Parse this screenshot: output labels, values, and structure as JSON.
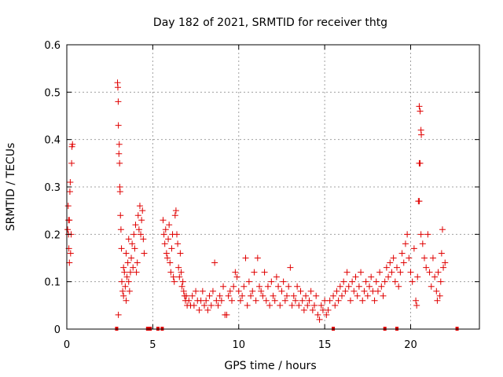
{
  "chart_data": {
    "type": "scatter",
    "title": "Day 182 of 2021, SRMTID for receiver thtg",
    "xlabel": "GPS time / hours",
    "ylabel": "SRMTID / TECUs",
    "xlim": [
      0,
      24
    ],
    "ylim": [
      0,
      0.6
    ],
    "xticks": [
      0,
      5,
      10,
      15,
      20
    ],
    "xtick_labels": [
      "0",
      "5",
      "10",
      "15",
      "20"
    ],
    "yticks": [
      0,
      0.1,
      0.2,
      0.3,
      0.4,
      0.5,
      0.6
    ],
    "ytick_labels": [
      "0",
      "0.1",
      "0.2",
      "0.3",
      "0.4",
      "0.5",
      "0.6"
    ],
    "grid": true,
    "marker": "plus",
    "color": "#e00000",
    "series": [
      {
        "name": "SRMTID",
        "points": [
          [
            0.05,
            0.21
          ],
          [
            0.08,
            0.26
          ],
          [
            0.1,
            0.2
          ],
          [
            0.12,
            0.17
          ],
          [
            0.15,
            0.23
          ],
          [
            0.18,
            0.29
          ],
          [
            0.2,
            0.31
          ],
          [
            0.22,
            0.16
          ],
          [
            0.25,
            0.2
          ],
          [
            0.28,
            0.35
          ],
          [
            0.3,
            0.385
          ],
          [
            0.33,
            0.39
          ],
          [
            0.15,
            0.14
          ],
          [
            0.1,
            0.23
          ],
          [
            2.95,
            0.52
          ],
          [
            2.97,
            0.51
          ],
          [
            2.99,
            0.48
          ],
          [
            3.0,
            0.43
          ],
          [
            3.03,
            0.37
          ],
          [
            3.05,
            0.39
          ],
          [
            3.07,
            0.35
          ],
          [
            3.08,
            0.3
          ],
          [
            3.1,
            0.29
          ],
          [
            3.12,
            0.24
          ],
          [
            3.15,
            0.21
          ],
          [
            3.0,
            0.03
          ],
          [
            3.18,
            0.17
          ],
          [
            3.2,
            0.1
          ],
          [
            3.25,
            0.08
          ],
          [
            3.3,
            0.07
          ],
          [
            3.35,
            0.12
          ],
          [
            3.4,
            0.09
          ],
          [
            3.45,
            0.06
          ],
          [
            3.5,
            0.11
          ],
          [
            3.55,
            0.14
          ],
          [
            3.6,
            0.1
          ],
          [
            3.65,
            0.08
          ],
          [
            3.7,
            0.12
          ],
          [
            3.75,
            0.15
          ],
          [
            3.8,
            0.18
          ],
          [
            3.85,
            0.13
          ],
          [
            3.9,
            0.2
          ],
          [
            3.95,
            0.17
          ],
          [
            4.0,
            0.22
          ],
          [
            4.05,
            0.12
          ],
          [
            4.1,
            0.14
          ],
          [
            4.15,
            0.24
          ],
          [
            4.2,
            0.21
          ],
          [
            4.25,
            0.26
          ],
          [
            4.3,
            0.2
          ],
          [
            4.35,
            0.23
          ],
          [
            4.4,
            0.25
          ],
          [
            4.45,
            0.19
          ],
          [
            4.5,
            0.16
          ],
          [
            3.3,
            0.13
          ],
          [
            3.45,
            0.16
          ],
          [
            3.6,
            0.19
          ],
          [
            5.6,
            0.23
          ],
          [
            5.65,
            0.2
          ],
          [
            5.7,
            0.18
          ],
          [
            5.75,
            0.21
          ],
          [
            5.8,
            0.16
          ],
          [
            5.85,
            0.15
          ],
          [
            5.9,
            0.19
          ],
          [
            5.95,
            0.22
          ],
          [
            6.0,
            0.14
          ],
          [
            6.05,
            0.12
          ],
          [
            6.1,
            0.17
          ],
          [
            6.15,
            0.2
          ],
          [
            6.2,
            0.11
          ],
          [
            6.25,
            0.1
          ],
          [
            6.3,
            0.24
          ],
          [
            6.35,
            0.25
          ],
          [
            6.4,
            0.2
          ],
          [
            6.45,
            0.18
          ],
          [
            6.5,
            0.13
          ],
          [
            6.55,
            0.11
          ],
          [
            6.6,
            0.16
          ],
          [
            6.65,
            0.12
          ],
          [
            6.7,
            0.09
          ],
          [
            6.75,
            0.1
          ],
          [
            6.8,
            0.08
          ],
          [
            6.85,
            0.07
          ],
          [
            6.9,
            0.06
          ],
          [
            6.95,
            0.07
          ],
          [
            7.0,
            0.05
          ],
          [
            7.1,
            0.06
          ],
          [
            7.2,
            0.05
          ],
          [
            7.3,
            0.07
          ],
          [
            7.4,
            0.05
          ],
          [
            7.5,
            0.08
          ],
          [
            7.6,
            0.06
          ],
          [
            7.7,
            0.04
          ],
          [
            7.8,
            0.06
          ],
          [
            7.9,
            0.08
          ],
          [
            8.0,
            0.05
          ],
          [
            8.1,
            0.06
          ],
          [
            8.2,
            0.04
          ],
          [
            8.3,
            0.07
          ],
          [
            8.4,
            0.05
          ],
          [
            8.5,
            0.08
          ],
          [
            8.6,
            0.14
          ],
          [
            8.7,
            0.06
          ],
          [
            8.8,
            0.05
          ],
          [
            8.9,
            0.07
          ],
          [
            9.0,
            0.06
          ],
          [
            9.1,
            0.09
          ],
          [
            9.2,
            0.03
          ],
          [
            9.3,
            0.03
          ],
          [
            9.4,
            0.07
          ],
          [
            9.5,
            0.08
          ],
          [
            9.6,
            0.06
          ],
          [
            9.7,
            0.09
          ],
          [
            9.8,
            0.12
          ],
          [
            9.9,
            0.11
          ],
          [
            10.0,
            0.08
          ],
          [
            10.1,
            0.06
          ],
          [
            10.2,
            0.07
          ],
          [
            10.3,
            0.09
          ],
          [
            10.4,
            0.15
          ],
          [
            10.5,
            0.05
          ],
          [
            10.6,
            0.1
          ],
          [
            10.7,
            0.07
          ],
          [
            10.8,
            0.08
          ],
          [
            10.9,
            0.12
          ],
          [
            11.0,
            0.06
          ],
          [
            11.1,
            0.15
          ],
          [
            11.2,
            0.09
          ],
          [
            11.3,
            0.08
          ],
          [
            11.4,
            0.07
          ],
          [
            11.5,
            0.12
          ],
          [
            11.6,
            0.06
          ],
          [
            11.7,
            0.09
          ],
          [
            11.8,
            0.05
          ],
          [
            11.9,
            0.1
          ],
          [
            12.0,
            0.07
          ],
          [
            12.1,
            0.06
          ],
          [
            12.2,
            0.11
          ],
          [
            12.3,
            0.09
          ],
          [
            12.4,
            0.05
          ],
          [
            12.5,
            0.08
          ],
          [
            12.6,
            0.1
          ],
          [
            12.7,
            0.06
          ],
          [
            12.8,
            0.07
          ],
          [
            12.9,
            0.09
          ],
          [
            13.0,
            0.13
          ],
          [
            13.1,
            0.05
          ],
          [
            13.2,
            0.07
          ],
          [
            13.3,
            0.06
          ],
          [
            13.4,
            0.09
          ],
          [
            13.5,
            0.05
          ],
          [
            13.6,
            0.08
          ],
          [
            13.7,
            0.06
          ],
          [
            13.8,
            0.04
          ],
          [
            13.9,
            0.07
          ],
          [
            14.0,
            0.05
          ],
          [
            14.1,
            0.06
          ],
          [
            14.2,
            0.08
          ],
          [
            14.3,
            0.04
          ],
          [
            14.4,
            0.05
          ],
          [
            14.5,
            0.07
          ],
          [
            14.6,
            0.03
          ],
          [
            14.7,
            0.02
          ],
          [
            14.8,
            0.05
          ],
          [
            14.9,
            0.04
          ],
          [
            15.0,
            0.06
          ],
          [
            15.1,
            0.03
          ],
          [
            15.2,
            0.04
          ],
          [
            15.3,
            0.06
          ],
          [
            15.5,
            0.07
          ],
          [
            15.6,
            0.05
          ],
          [
            15.7,
            0.08
          ],
          [
            15.8,
            0.06
          ],
          [
            15.9,
            0.09
          ],
          [
            16.0,
            0.07
          ],
          [
            16.1,
            0.1
          ],
          [
            16.2,
            0.08
          ],
          [
            16.3,
            0.12
          ],
          [
            16.4,
            0.09
          ],
          [
            16.5,
            0.06
          ],
          [
            16.6,
            0.1
          ],
          [
            16.7,
            0.08
          ],
          [
            16.8,
            0.11
          ],
          [
            16.9,
            0.07
          ],
          [
            17.0,
            0.09
          ],
          [
            17.1,
            0.12
          ],
          [
            17.2,
            0.06
          ],
          [
            17.3,
            0.08
          ],
          [
            17.4,
            0.1
          ],
          [
            17.5,
            0.07
          ],
          [
            17.6,
            0.09
          ],
          [
            17.7,
            0.11
          ],
          [
            17.8,
            0.08
          ],
          [
            17.9,
            0.06
          ],
          [
            18.0,
            0.1
          ],
          [
            18.1,
            0.08
          ],
          [
            18.2,
            0.12
          ],
          [
            18.3,
            0.09
          ],
          [
            18.4,
            0.07
          ],
          [
            18.5,
            0.1
          ],
          [
            18.6,
            0.13
          ],
          [
            18.7,
            0.11
          ],
          [
            18.8,
            0.14
          ],
          [
            18.9,
            0.12
          ],
          [
            19.0,
            0.15
          ],
          [
            19.1,
            0.1
          ],
          [
            19.2,
            0.13
          ],
          [
            19.3,
            0.09
          ],
          [
            19.4,
            0.12
          ],
          [
            19.5,
            0.16
          ],
          [
            19.6,
            0.14
          ],
          [
            19.7,
            0.18
          ],
          [
            19.8,
            0.2
          ],
          [
            19.9,
            0.15
          ],
          [
            20.0,
            0.12
          ],
          [
            20.1,
            0.1
          ],
          [
            20.2,
            0.17
          ],
          [
            20.3,
            0.06
          ],
          [
            20.35,
            0.05
          ],
          [
            20.4,
            0.11
          ],
          [
            20.5,
            0.47
          ],
          [
            20.55,
            0.46
          ],
          [
            20.6,
            0.42
          ],
          [
            20.62,
            0.41
          ],
          [
            20.5,
            0.35
          ],
          [
            20.55,
            0.35
          ],
          [
            20.45,
            0.27
          ],
          [
            20.5,
            0.27
          ],
          [
            20.6,
            0.2
          ],
          [
            20.7,
            0.18
          ],
          [
            20.8,
            0.15
          ],
          [
            20.9,
            0.13
          ],
          [
            21.0,
            0.2
          ],
          [
            21.1,
            0.12
          ],
          [
            21.2,
            0.09
          ],
          [
            21.3,
            0.15
          ],
          [
            21.4,
            0.11
          ],
          [
            21.5,
            0.08
          ],
          [
            21.6,
            0.12
          ],
          [
            21.7,
            0.07
          ],
          [
            21.8,
            0.16
          ],
          [
            21.85,
            0.21
          ],
          [
            21.9,
            0.13
          ],
          [
            22.0,
            0.14
          ],
          [
            21.55,
            0.06
          ],
          [
            21.75,
            0.1
          ]
        ]
      }
    ],
    "zero_markers_x": [
      2.9,
      4.7,
      4.75,
      4.8,
      4.85,
      5.3,
      5.55,
      15.5,
      18.5,
      19.2,
      22.7
    ]
  }
}
